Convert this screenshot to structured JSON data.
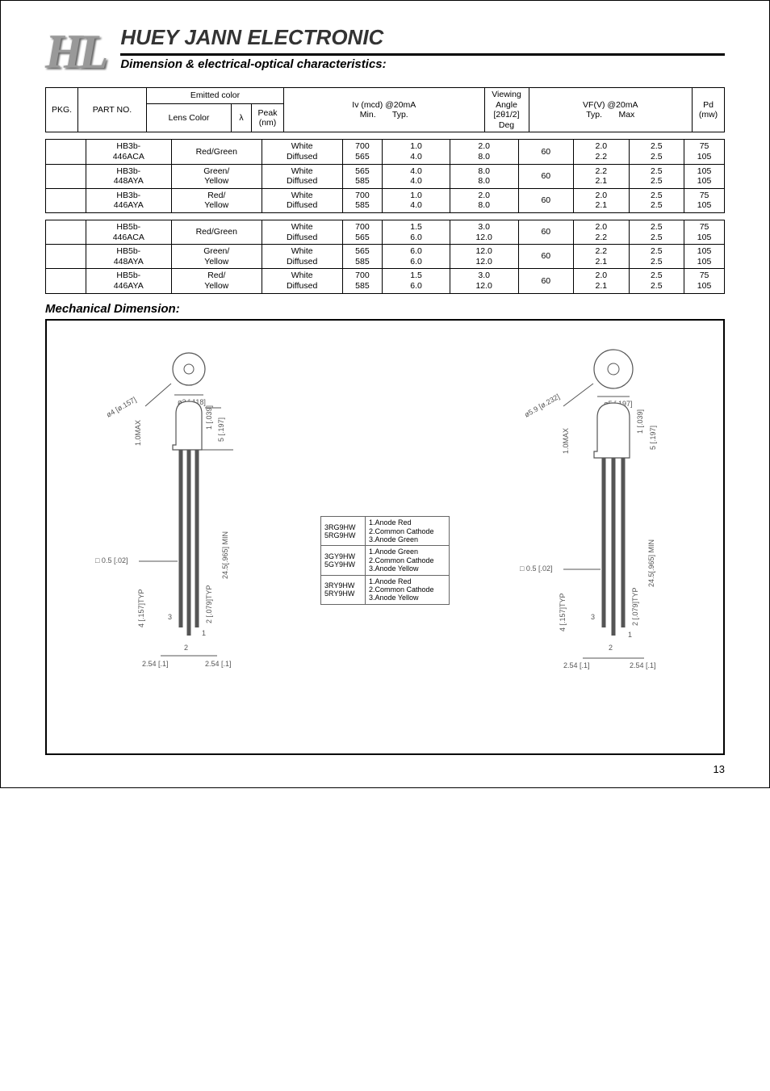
{
  "company": "HUEY JANN ELECTRONIC",
  "section_label": "Dimension & electrical-optical characteristics:",
  "page_number": "13",
  "header": {
    "pkg": "PKG.",
    "part_no": "PART NO.",
    "emitted_color": "Emitted color",
    "lens_color": "Lens Color",
    "peak": "Peak (nm)",
    "lambda": "λ",
    "iv_group": "Iv (mcd) @20mA",
    "iv_min": "Min.",
    "iv_typ": "Typ.",
    "angle": "Viewing Angle [2θ1/2]",
    "angle_deg": "Deg",
    "vf_group": "VF(V) @20mA",
    "vf_typ": "Typ.",
    "vf_max": "Max",
    "pd": "Pd (mw)"
  },
  "tables": [
    {
      "rows": [
        {
          "pkg": "",
          "part": "HB3b-\n446ACA",
          "emit": "Red/Green",
          "lens": "White\nDiffused",
          "peak": "700\n565",
          "ivmin": "1.0\n4.0",
          "ivtyp": "2.0\n8.0",
          "angle": "60",
          "vft": "2.0\n2.2",
          "vfm": "2.5\n2.5",
          "pd": "75\n105"
        },
        {
          "pkg": "",
          "part": "HB3b-\n448AYA",
          "emit": "Green/\nYellow",
          "lens": "White\nDiffused",
          "peak": "565\n585",
          "ivmin": "4.0\n4.0",
          "ivtyp": "8.0\n8.0",
          "angle": "60",
          "vft": "2.2\n2.1",
          "vfm": "2.5\n2.5",
          "pd": "105\n105"
        },
        {
          "pkg": "",
          "part": "HB3b-\n446AYA",
          "emit": "Red/\nYellow",
          "lens": "White\nDiffused",
          "peak": "700\n585",
          "ivmin": "1.0\n4.0",
          "ivtyp": "2.0\n8.0",
          "angle": "60",
          "vft": "2.0\n2.1",
          "vfm": "2.5\n2.5",
          "pd": "75\n105"
        }
      ]
    },
    {
      "rows": [
        {
          "pkg": "",
          "part": "HB5b-\n446ACA",
          "emit": "Red/Green",
          "lens": "White\nDiffused",
          "peak": "700\n565",
          "ivmin": "1.5\n6.0",
          "ivtyp": "3.0\n12.0",
          "angle": "60",
          "vft": "2.0\n2.2",
          "vfm": "2.5\n2.5",
          "pd": "75\n105"
        },
        {
          "pkg": "",
          "part": "HB5b-\n448AYA",
          "emit": "Green/\nYellow",
          "lens": "White\nDiffused",
          "peak": "565\n585",
          "ivmin": "6.0\n6.0",
          "ivtyp": "12.0\n12.0",
          "angle": "60",
          "vft": "2.2\n2.1",
          "vfm": "2.5\n2.5",
          "pd": "105\n105"
        },
        {
          "pkg": "",
          "part": "HB5b-\n446AYA",
          "emit": "Red/\nYellow",
          "lens": "White\nDiffused",
          "peak": "700\n585",
          "ivmin": "1.5\n6.0",
          "ivtyp": "3.0\n12.0",
          "angle": "60",
          "vft": "2.0\n2.1",
          "vfm": "2.5\n2.5",
          "pd": "75\n105"
        }
      ]
    }
  ],
  "mech_title": "Mechanical Dimension:",
  "pins": [
    {
      "codes": "3RG9HW\n5RG9HW",
      "desc": "1.Anode Red\n2.Common Cathode\n3.Anode Green"
    },
    {
      "codes": "3GY9HW\n5GY9HW",
      "desc": "1.Anode Green\n2.Common Cathode\n3.Anode Yellow"
    },
    {
      "codes": "3RY9HW\n5RY9HW",
      "desc": "1.Anode Red\n2.Common Cathode\n3.Anode Yellow"
    }
  ],
  "dimensions": {
    "d3_top": "ø4 [ø.157]",
    "d3_dia": "ø3 [.118]",
    "d3_h1": "1 [.039]",
    "d3_h2": "5 [.197]",
    "d3_sq": "□ 0.5 [.02]",
    "d3_lead": "24.5[.965] MIN",
    "d3_typ1": "4 [.157]TYP",
    "d3_typ2": "2 [.079]TYP",
    "d3_pitch": "2.54 [.1]",
    "d3_flange": "1.0MAX",
    "d5_top": "ø5.9 [ø.232]",
    "d5_dia": "ø5 [.197]",
    "d5_h1": "1 [.039]",
    "d5_h2": "5 [.197]",
    "d5_sq": "□ 0.5 [.02]",
    "d5_lead": "24.5[.965] MIN",
    "d5_typ1": "4 [.157]TYP",
    "d5_typ2": "2 [.079]TYP",
    "d5_pitch": "2.54 [.1]",
    "d5_flange": "1.0MAX",
    "p1": "1",
    "p2": "2",
    "p3": "3"
  }
}
